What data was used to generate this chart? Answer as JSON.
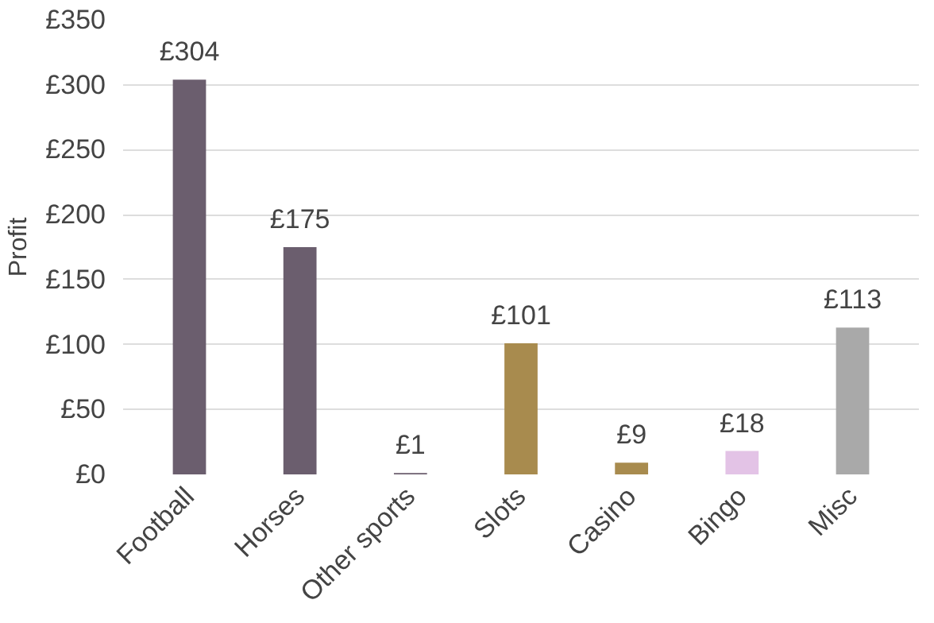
{
  "chart_data": {
    "type": "bar",
    "ylabel": "Profit",
    "categories": [
      "Football",
      "Horses",
      "Other sports",
      "Slots",
      "Casino",
      "Bingo",
      "Misc"
    ],
    "values": [
      304,
      175,
      1,
      101,
      9,
      18,
      113
    ],
    "colors": [
      "#6b5e6e",
      "#6b5e6e",
      "#6b5e6e",
      "#a88b4e",
      "#a88b4e",
      "#e3c3e6",
      "#a9a9a9"
    ],
    "value_labels": [
      "£304",
      "£175",
      "£1",
      "£101",
      "£9",
      "£18",
      "£113"
    ],
    "ylim": [
      0,
      350
    ],
    "yticks": [
      {
        "value": 0,
        "label": "£0"
      },
      {
        "value": 50,
        "label": "£50"
      },
      {
        "value": 100,
        "label": "£100"
      },
      {
        "value": 150,
        "label": "£150"
      },
      {
        "value": 200,
        "label": "£200"
      },
      {
        "value": 250,
        "label": "£250"
      },
      {
        "value": 300,
        "label": "£300"
      },
      {
        "value": 350,
        "label": "£350"
      }
    ],
    "grid": "y"
  }
}
